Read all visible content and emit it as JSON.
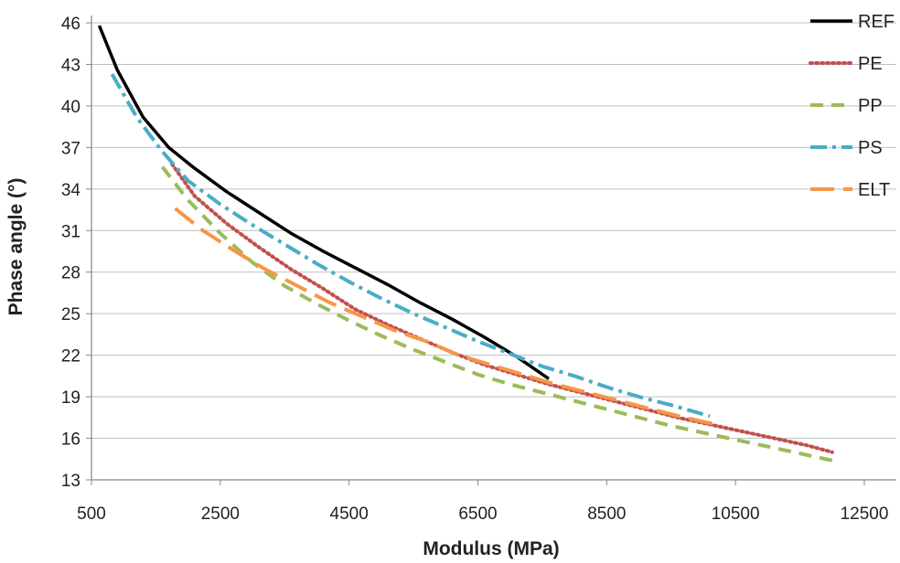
{
  "chart_data": {
    "type": "line",
    "title": "",
    "xlabel": "Modulus (MPa)",
    "ylabel": "Phase angle (°)",
    "xlim": [
      500,
      12500
    ],
    "ylim": [
      13,
      46
    ],
    "xticks": [
      500,
      2500,
      4500,
      6500,
      8500,
      10500,
      12500
    ],
    "yticks": [
      13,
      16,
      19,
      22,
      25,
      28,
      31,
      34,
      37,
      40,
      43,
      46
    ],
    "grid": "horizontal",
    "legend_position": "right",
    "series": [
      {
        "name": "REF",
        "color": "#000000",
        "dash": "solid",
        "points": [
          [
            620,
            45.8
          ],
          [
            900,
            42.6
          ],
          [
            1300,
            39.2
          ],
          [
            1700,
            37.0
          ],
          [
            2100,
            35.5
          ],
          [
            2600,
            33.8
          ],
          [
            3100,
            32.3
          ],
          [
            3600,
            30.8
          ],
          [
            4100,
            29.5
          ],
          [
            4600,
            28.3
          ],
          [
            5100,
            27.1
          ],
          [
            5600,
            25.8
          ],
          [
            6100,
            24.6
          ],
          [
            6600,
            23.3
          ],
          [
            7100,
            21.9
          ],
          [
            7600,
            20.3
          ]
        ]
      },
      {
        "name": "PE",
        "color": "#c0504d",
        "dash": "dotted",
        "points": [
          [
            1750,
            35.8
          ],
          [
            2100,
            33.5
          ],
          [
            2600,
            31.5
          ],
          [
            3100,
            29.8
          ],
          [
            3600,
            28.2
          ],
          [
            4100,
            26.8
          ],
          [
            4600,
            25.3
          ],
          [
            5100,
            24.2
          ],
          [
            5600,
            23.2
          ],
          [
            6100,
            22.2
          ],
          [
            6600,
            21.3
          ],
          [
            7100,
            20.6
          ],
          [
            7600,
            19.9
          ],
          [
            8100,
            19.3
          ],
          [
            8600,
            18.7
          ],
          [
            9100,
            18.1
          ],
          [
            9600,
            17.5
          ],
          [
            10100,
            17.0
          ],
          [
            10600,
            16.5
          ],
          [
            11100,
            16.0
          ],
          [
            11600,
            15.5
          ],
          [
            12000,
            15.0
          ]
        ]
      },
      {
        "name": "PP",
        "color": "#9bbb59",
        "dash": "dashed",
        "points": [
          [
            1600,
            35.6
          ],
          [
            2000,
            33.2
          ],
          [
            2500,
            30.8
          ],
          [
            3000,
            28.7
          ],
          [
            3500,
            27.0
          ],
          [
            4000,
            25.7
          ],
          [
            4500,
            24.5
          ],
          [
            5000,
            23.4
          ],
          [
            5500,
            22.4
          ],
          [
            6000,
            21.5
          ],
          [
            6500,
            20.6
          ],
          [
            7000,
            19.9
          ],
          [
            7500,
            19.3
          ],
          [
            8000,
            18.7
          ],
          [
            8500,
            18.1
          ],
          [
            9000,
            17.5
          ],
          [
            9500,
            16.9
          ],
          [
            10000,
            16.4
          ],
          [
            10500,
            15.9
          ],
          [
            11000,
            15.4
          ],
          [
            11500,
            14.9
          ],
          [
            12100,
            14.3
          ]
        ]
      },
      {
        "name": "PS",
        "color": "#4bacc6",
        "dash": "dashdot",
        "points": [
          [
            820,
            42.3
          ],
          [
            1200,
            39.2
          ],
          [
            1600,
            36.7
          ],
          [
            2000,
            34.6
          ],
          [
            2500,
            32.9
          ],
          [
            3000,
            31.4
          ],
          [
            3500,
            30.0
          ],
          [
            4000,
            28.6
          ],
          [
            4500,
            27.3
          ],
          [
            5000,
            26.1
          ],
          [
            5500,
            25.0
          ],
          [
            6000,
            24.0
          ],
          [
            6500,
            23.0
          ],
          [
            7000,
            22.1
          ],
          [
            7500,
            21.2
          ],
          [
            8000,
            20.5
          ],
          [
            8500,
            19.7
          ],
          [
            9000,
            19.0
          ],
          [
            9500,
            18.4
          ],
          [
            10100,
            17.6
          ]
        ]
      },
      {
        "name": "ELT",
        "color": "#f79646",
        "dash": "longdash",
        "points": [
          [
            1800,
            32.6
          ],
          [
            2200,
            31.1
          ],
          [
            2700,
            29.6
          ],
          [
            3200,
            28.2
          ],
          [
            3700,
            27.0
          ],
          [
            4200,
            25.8
          ],
          [
            4700,
            24.8
          ],
          [
            5200,
            23.8
          ],
          [
            5700,
            23.0
          ],
          [
            6200,
            22.0
          ],
          [
            6700,
            21.3
          ],
          [
            7200,
            20.6
          ],
          [
            7700,
            19.9
          ],
          [
            8200,
            19.3
          ],
          [
            8700,
            18.7
          ],
          [
            9200,
            18.1
          ],
          [
            9700,
            17.5
          ],
          [
            10200,
            17.0
          ]
        ]
      }
    ]
  }
}
